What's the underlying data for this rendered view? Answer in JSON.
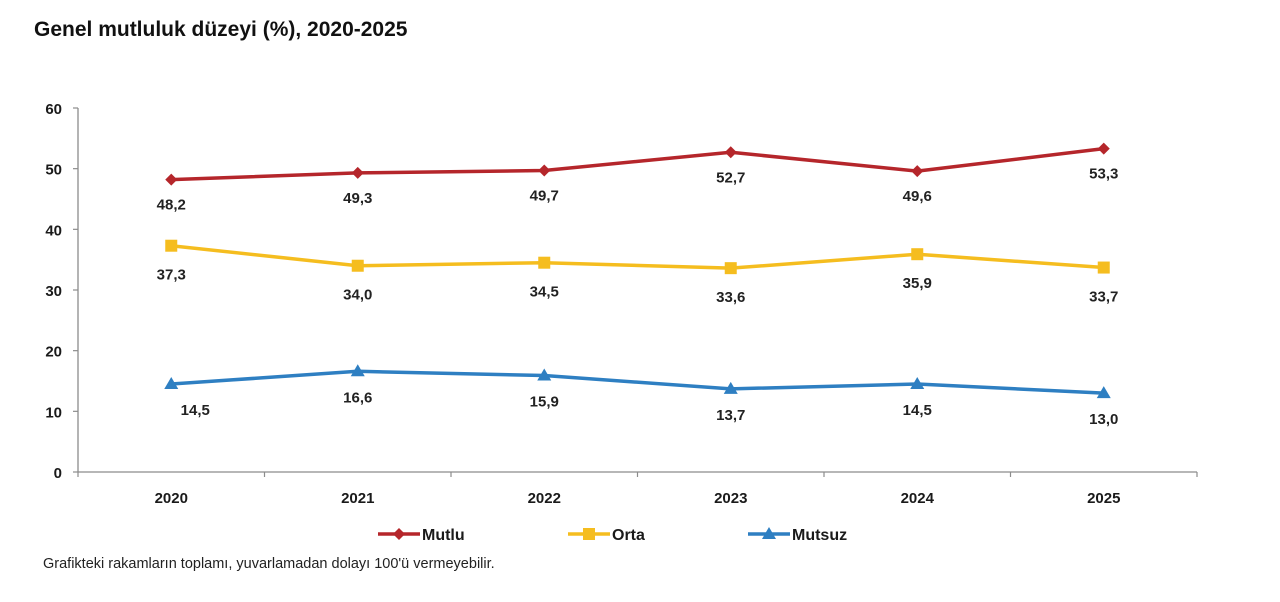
{
  "chart_data": {
    "type": "line",
    "title": "Genel mutluluk düzeyi (%), 2020-2025",
    "xlabel": "",
    "ylabel": "",
    "categories": [
      "2020",
      "2021",
      "2022",
      "2023",
      "2024",
      "2025"
    ],
    "ylim": [
      0,
      60
    ],
    "yticks": [
      0,
      10,
      20,
      30,
      40,
      50,
      60
    ],
    "grid": false,
    "legend_position": "bottom",
    "series": [
      {
        "name": "Mutlu",
        "color": "#b5262b",
        "marker": "diamond",
        "values": [
          48.2,
          49.3,
          49.7,
          52.7,
          49.6,
          53.3
        ],
        "labels": [
          "48,2",
          "49,3",
          "49,7",
          "52,7",
          "49,6",
          "53,3"
        ]
      },
      {
        "name": "Orta",
        "color": "#f5bd1f",
        "marker": "square",
        "values": [
          37.3,
          34.0,
          34.5,
          33.6,
          35.9,
          33.7
        ],
        "labels": [
          "37,3",
          "34,0",
          "34,5",
          "33,6",
          "35,9",
          "33,7"
        ]
      },
      {
        "name": "Mutsuz",
        "color": "#2e7fc2",
        "marker": "triangle",
        "values": [
          14.5,
          16.6,
          15.9,
          13.7,
          14.5,
          13.0
        ],
        "labels": [
          "14,5",
          "16,6",
          "15,9",
          "13,7",
          "14,5",
          "13,0"
        ]
      }
    ],
    "footnote": "Grafikteki rakamların toplamı, yuvarlamadan dolayı 100'ü vermeyebilir."
  }
}
